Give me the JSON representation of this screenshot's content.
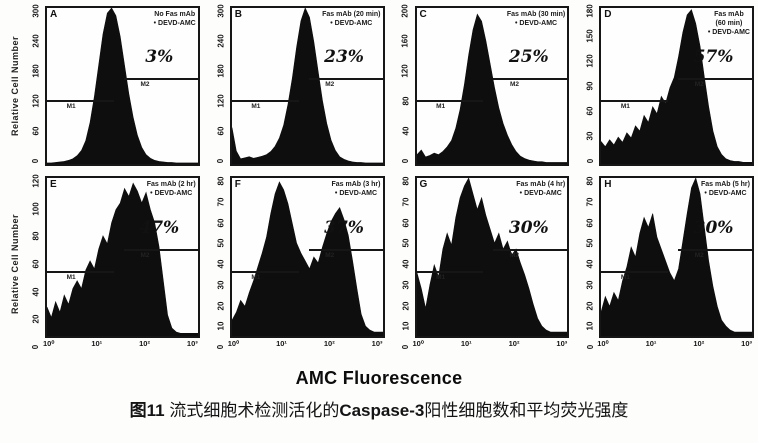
{
  "figure": {
    "ylabel": "Relative Cell Number",
    "xlabel": "AMC Fluorescence",
    "caption": {
      "fig_label": "图11",
      "text1": " 流式细胞术检测活化的",
      "bold_term": "Caspase-3",
      "text2": "阳性细胞数和平均荧光强度"
    },
    "ink_color": "#0e0e0e",
    "background_color": "#fdfdfc"
  },
  "chart_data": [
    {
      "type": "area",
      "kind": "flow-cytometry-histogram",
      "row": 0,
      "letter": "A",
      "header_lines": [
        "No Fas mAb",
        "• DEVD-AMC"
      ],
      "percent": "3%",
      "gates": [
        "M1",
        "M2"
      ],
      "xlabel": "AMC Fluorescence",
      "x_scale": "log",
      "x_range": [
        "10⁰",
        "10³"
      ],
      "ylim": [
        0,
        300
      ],
      "yticks": [
        0,
        60,
        120,
        180,
        240,
        300
      ],
      "values": [
        2,
        2,
        3,
        4,
        5,
        7,
        10,
        16,
        26,
        45,
        80,
        130,
        190,
        250,
        290,
        300,
        285,
        245,
        190,
        135,
        90,
        55,
        32,
        18,
        11,
        7,
        5,
        4,
        3,
        3,
        2,
        2,
        2,
        2,
        2,
        2
      ]
    },
    {
      "type": "area",
      "kind": "flow-cytometry-histogram",
      "row": 0,
      "letter": "B",
      "header_lines": [
        "Fas mAb (20 min)",
        "• DEVD-AMC"
      ],
      "percent": "23%",
      "gates": [
        "M1",
        "M2"
      ],
      "xlabel": "AMC Fluorescence",
      "x_scale": "log",
      "x_range": [
        "10⁰",
        "10³"
      ],
      "ylim": [
        0,
        300
      ],
      "yticks": [
        0,
        60,
        120,
        180,
        240,
        300
      ],
      "values": [
        70,
        25,
        10,
        12,
        14,
        11,
        13,
        15,
        18,
        24,
        34,
        50,
        75,
        115,
        165,
        225,
        275,
        300,
        282,
        235,
        178,
        122,
        78,
        46,
        26,
        14,
        9,
        6,
        4,
        3,
        3,
        2,
        2,
        2,
        2,
        2
      ]
    },
    {
      "type": "area",
      "kind": "flow-cytometry-histogram",
      "row": 0,
      "letter": "C",
      "header_lines": [
        "Fas mAb (30 min)",
        "• DEVD-AMC"
      ],
      "percent": "25%",
      "gates": [
        "M1",
        "M2"
      ],
      "xlabel": "AMC Fluorescence",
      "x_scale": "log",
      "x_range": [
        "10⁰",
        "10³"
      ],
      "ylim": [
        0,
        200
      ],
      "yticks": [
        0,
        40,
        80,
        120,
        160,
        200
      ],
      "values": [
        12,
        18,
        9,
        11,
        14,
        12,
        16,
        22,
        30,
        46,
        70,
        102,
        140,
        172,
        192,
        183,
        158,
        128,
        98,
        72,
        52,
        37,
        25,
        16,
        10,
        7,
        5,
        4,
        3,
        3,
        2,
        2,
        2,
        2,
        2,
        2
      ]
    },
    {
      "type": "area",
      "kind": "flow-cytometry-histogram",
      "row": 0,
      "letter": "D",
      "header_lines": [
        "Fas mAb",
        "(60 min)",
        "• DEVD-AMC"
      ],
      "percent": "57%",
      "gates": [
        "M1",
        "M2"
      ],
      "xlabel": "AMC Fluorescence",
      "x_scale": "log",
      "x_range": [
        "10⁰",
        "10³"
      ],
      "ylim": [
        0,
        180
      ],
      "yticks": [
        0,
        30,
        60,
        90,
        120,
        150,
        180
      ],
      "values": [
        26,
        20,
        28,
        22,
        31,
        25,
        36,
        30,
        44,
        38,
        56,
        48,
        66,
        58,
        78,
        70,
        88,
        100,
        124,
        152,
        172,
        178,
        162,
        136,
        100,
        66,
        38,
        20,
        11,
        6,
        4,
        3,
        3,
        2,
        2,
        2
      ]
    },
    {
      "type": "area",
      "kind": "flow-cytometry-histogram",
      "row": 1,
      "letter": "E",
      "header_lines": [
        "Fas mAb (2 hr)",
        "• DEVD-AMC"
      ],
      "percent": "47%",
      "gates": [
        "M1",
        "M2"
      ],
      "xlabel": "AMC Fluorescence",
      "x_scale": "log",
      "xticks": [
        "10⁰",
        "10¹",
        "10²",
        "10³"
      ],
      "ylim": [
        0,
        120
      ],
      "yticks": [
        0,
        20,
        40,
        60,
        80,
        100,
        120
      ],
      "values": [
        22,
        14,
        26,
        18,
        31,
        24,
        36,
        42,
        36,
        50,
        57,
        51,
        66,
        76,
        70,
        86,
        96,
        101,
        112,
        106,
        116,
        110,
        101,
        109,
        96,
        86,
        68,
        42,
        16,
        6,
        3,
        2,
        2,
        2,
        2,
        2
      ]
    },
    {
      "type": "area",
      "kind": "flow-cytometry-histogram",
      "row": 1,
      "letter": "F",
      "header_lines": [
        "Fas mAb (3 hr)",
        "• DEVD-AMC"
      ],
      "percent": "37%",
      "gates": [
        "M1",
        "M2"
      ],
      "xlabel": "AMC Fluorescence",
      "x_scale": "log",
      "xticks": [
        "10⁰",
        "10¹",
        "10²",
        "10³"
      ],
      "ylim": [
        0,
        80
      ],
      "yticks": [
        0,
        10,
        20,
        30,
        40,
        50,
        60,
        70,
        80
      ],
      "values": [
        8,
        12,
        18,
        15,
        22,
        28,
        35,
        42,
        50,
        62,
        72,
        78,
        74,
        67,
        57,
        47,
        42,
        38,
        34,
        40,
        37,
        45,
        52,
        58,
        62,
        65,
        59,
        51,
        38,
        24,
        11,
        5,
        3,
        2,
        2,
        2
      ]
    },
    {
      "type": "area",
      "kind": "flow-cytometry-histogram",
      "row": 1,
      "letter": "G",
      "header_lines": [
        "Fas mAb (4 hr)",
        "• DEVD-AMC"
      ],
      "percent": "30%",
      "gates": [
        "M1",
        "M2"
      ],
      "xlabel": "AMC Fluorescence",
      "x_scale": "log",
      "xticks": [
        "10⁰",
        "10¹",
        "10²",
        "10³"
      ],
      "ylim": [
        0,
        80
      ],
      "yticks": [
        0,
        10,
        20,
        30,
        40,
        50,
        60,
        70,
        80
      ],
      "values": [
        32,
        24,
        14,
        26,
        36,
        30,
        44,
        52,
        46,
        60,
        70,
        76,
        80,
        72,
        64,
        70,
        61,
        54,
        47,
        52,
        44,
        48,
        41,
        44,
        37,
        31,
        24,
        16,
        9,
        5,
        3,
        2,
        2,
        2,
        2,
        2
      ]
    },
    {
      "type": "area",
      "kind": "flow-cytometry-histogram",
      "row": 1,
      "letter": "H",
      "header_lines": [
        "Fas mAb (5 hr)",
        "• DEVD-AMC"
      ],
      "percent": "30%",
      "gates": [
        "M1",
        "M2"
      ],
      "xlabel": "AMC Fluorescence",
      "x_scale": "log",
      "xticks": [
        "10⁰",
        "10¹",
        "10²",
        "10³"
      ],
      "ylim": [
        0,
        80
      ],
      "yticks": [
        0,
        10,
        20,
        30,
        40,
        50,
        60,
        70,
        80
      ],
      "values": [
        12,
        20,
        15,
        22,
        18,
        28,
        35,
        45,
        40,
        52,
        60,
        55,
        62,
        50,
        44,
        38,
        32,
        28,
        34,
        48,
        62,
        75,
        80,
        72,
        55,
        38,
        25,
        15,
        8,
        5,
        3,
        2,
        2,
        2,
        2,
        2
      ]
    }
  ]
}
